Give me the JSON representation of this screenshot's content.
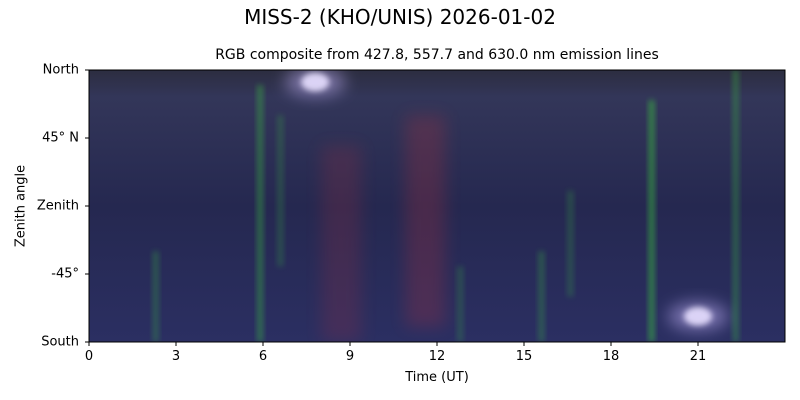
{
  "figure_title": "MISS-2 (KHO/UNIS) 2026-01-02",
  "chart_data": {
    "type": "heatmap",
    "title": "RGB composite from 427.8, 557.7 and 630.0 nm emission lines",
    "xlabel": "Time (UT)",
    "ylabel": "Zenith angle",
    "xlim": [
      0,
      24
    ],
    "xticks": [
      0,
      3,
      6,
      9,
      12,
      15,
      18,
      21
    ],
    "xtick_labels": [
      "0",
      "3",
      "6",
      "9",
      "12",
      "15",
      "18",
      "21"
    ],
    "ylim": [
      -90,
      90
    ],
    "yticks": [
      90,
      45,
      0,
      -45,
      -90
    ],
    "ytick_labels": [
      "North",
      "45° N",
      "Zenith",
      "-45°",
      "South"
    ],
    "channels": [
      {
        "wavelength_nm": 427.8,
        "color": "#3a3fbf"
      },
      {
        "wavelength_nm": 557.7,
        "color": "#3cd23c"
      },
      {
        "wavelength_nm": 630.0,
        "color": "#c8303a"
      }
    ],
    "background_color": "#272a52",
    "features": [
      {
        "kind": "green-arc",
        "t": 2.3,
        "z_from": -30,
        "z_to": -90,
        "intensity": 0.5
      },
      {
        "kind": "green-arc",
        "t": 5.9,
        "z_from": 80,
        "z_to": -90,
        "intensity": 0.7
      },
      {
        "kind": "green-arc",
        "t": 6.6,
        "z_from": 60,
        "z_to": -40,
        "intensity": 0.4
      },
      {
        "kind": "red-glow",
        "t": 8.7,
        "z_from": 40,
        "z_to": -90,
        "intensity": 0.3
      },
      {
        "kind": "red-glow",
        "t": 11.6,
        "z_from": 60,
        "z_to": -80,
        "intensity": 0.4
      },
      {
        "kind": "green-arc",
        "t": 12.8,
        "z_from": -40,
        "z_to": -90,
        "intensity": 0.4
      },
      {
        "kind": "green-arc",
        "t": 15.6,
        "z_from": -30,
        "z_to": -90,
        "intensity": 0.5
      },
      {
        "kind": "green-arc",
        "t": 16.6,
        "z_from": 10,
        "z_to": -60,
        "intensity": 0.4
      },
      {
        "kind": "green-arc",
        "t": 19.4,
        "z_from": 70,
        "z_to": -90,
        "intensity": 0.9
      },
      {
        "kind": "bright-spot",
        "t": 21.0,
        "z": -73,
        "intensity": 1.0
      },
      {
        "kind": "green-arc",
        "t": 22.3,
        "z_from": 90,
        "z_to": -90,
        "intensity": 0.6
      },
      {
        "kind": "bright-spot",
        "t": 7.8,
        "z": 82,
        "intensity": 1.0
      }
    ]
  }
}
